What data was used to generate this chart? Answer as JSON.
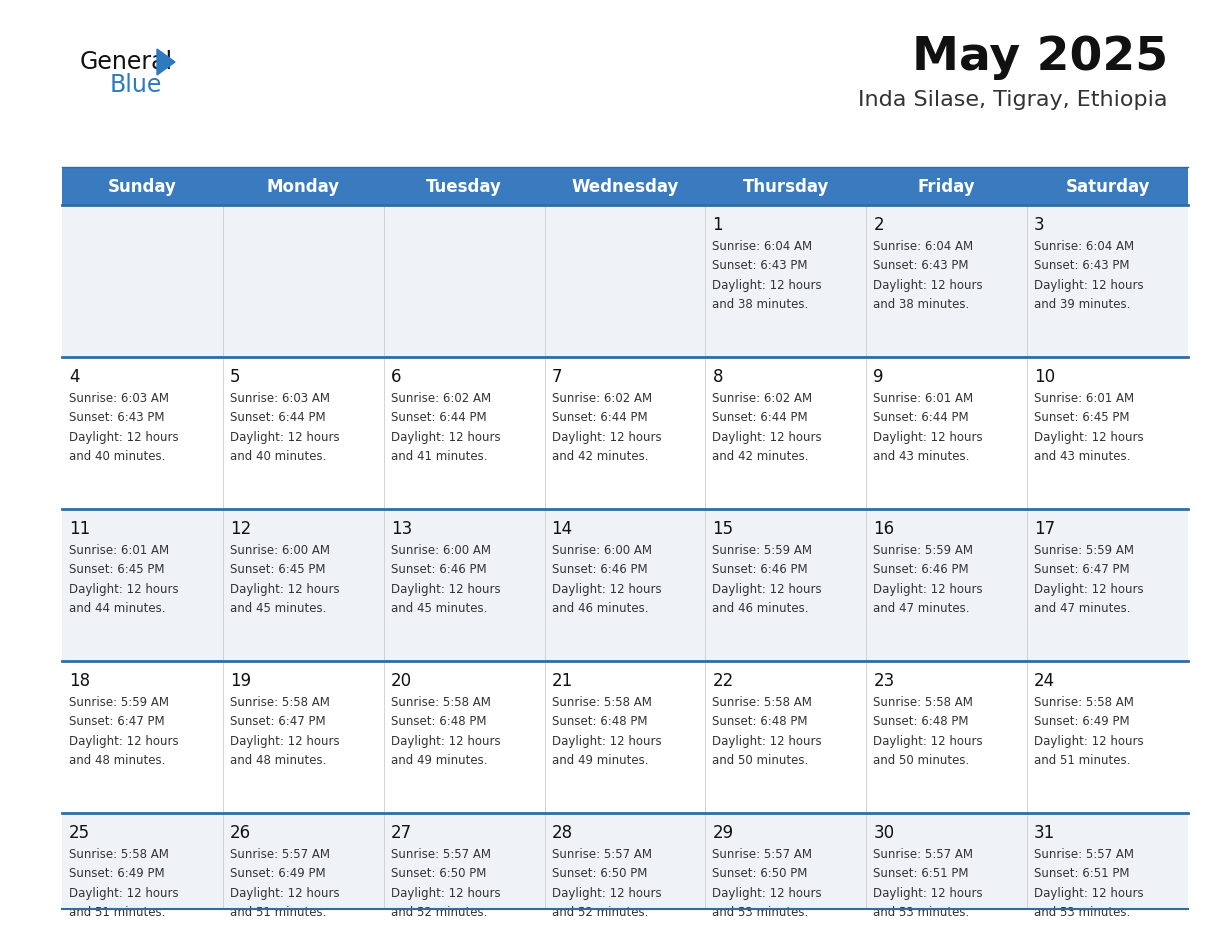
{
  "title": "May 2025",
  "subtitle": "Inda Silase, Tigray, Ethiopia",
  "days_of_week": [
    "Sunday",
    "Monday",
    "Tuesday",
    "Wednesday",
    "Thursday",
    "Friday",
    "Saturday"
  ],
  "header_bg": "#3a7bbf",
  "header_text": "#ffffff",
  "row_bg": [
    "#eff3f8",
    "#ffffff",
    "#eff3f8",
    "#ffffff",
    "#eff3f8"
  ],
  "divider_color": "#2e6da4",
  "day_number_color": "#111111",
  "cell_text_color": "#333333",
  "title_color": "#111111",
  "subtitle_color": "#333333",
  "logo_general_color": "#111111",
  "logo_blue_color": "#2e7abf",
  "logo_triangle_color": "#2e7abf",
  "calendar_data": [
    [
      null,
      null,
      null,
      null,
      {
        "day": 1,
        "sunrise": "6:04 AM",
        "sunset": "6:43 PM",
        "daylight": "12 hours and 38 minutes."
      },
      {
        "day": 2,
        "sunrise": "6:04 AM",
        "sunset": "6:43 PM",
        "daylight": "12 hours and 38 minutes."
      },
      {
        "day": 3,
        "sunrise": "6:04 AM",
        "sunset": "6:43 PM",
        "daylight": "12 hours and 39 minutes."
      }
    ],
    [
      {
        "day": 4,
        "sunrise": "6:03 AM",
        "sunset": "6:43 PM",
        "daylight": "12 hours and 40 minutes."
      },
      {
        "day": 5,
        "sunrise": "6:03 AM",
        "sunset": "6:44 PM",
        "daylight": "12 hours and 40 minutes."
      },
      {
        "day": 6,
        "sunrise": "6:02 AM",
        "sunset": "6:44 PM",
        "daylight": "12 hours and 41 minutes."
      },
      {
        "day": 7,
        "sunrise": "6:02 AM",
        "sunset": "6:44 PM",
        "daylight": "12 hours and 42 minutes."
      },
      {
        "day": 8,
        "sunrise": "6:02 AM",
        "sunset": "6:44 PM",
        "daylight": "12 hours and 42 minutes."
      },
      {
        "day": 9,
        "sunrise": "6:01 AM",
        "sunset": "6:44 PM",
        "daylight": "12 hours and 43 minutes."
      },
      {
        "day": 10,
        "sunrise": "6:01 AM",
        "sunset": "6:45 PM",
        "daylight": "12 hours and 43 minutes."
      }
    ],
    [
      {
        "day": 11,
        "sunrise": "6:01 AM",
        "sunset": "6:45 PM",
        "daylight": "12 hours and 44 minutes."
      },
      {
        "day": 12,
        "sunrise": "6:00 AM",
        "sunset": "6:45 PM",
        "daylight": "12 hours and 45 minutes."
      },
      {
        "day": 13,
        "sunrise": "6:00 AM",
        "sunset": "6:46 PM",
        "daylight": "12 hours and 45 minutes."
      },
      {
        "day": 14,
        "sunrise": "6:00 AM",
        "sunset": "6:46 PM",
        "daylight": "12 hours and 46 minutes."
      },
      {
        "day": 15,
        "sunrise": "5:59 AM",
        "sunset": "6:46 PM",
        "daylight": "12 hours and 46 minutes."
      },
      {
        "day": 16,
        "sunrise": "5:59 AM",
        "sunset": "6:46 PM",
        "daylight": "12 hours and 47 minutes."
      },
      {
        "day": 17,
        "sunrise": "5:59 AM",
        "sunset": "6:47 PM",
        "daylight": "12 hours and 47 minutes."
      }
    ],
    [
      {
        "day": 18,
        "sunrise": "5:59 AM",
        "sunset": "6:47 PM",
        "daylight": "12 hours and 48 minutes."
      },
      {
        "day": 19,
        "sunrise": "5:58 AM",
        "sunset": "6:47 PM",
        "daylight": "12 hours and 48 minutes."
      },
      {
        "day": 20,
        "sunrise": "5:58 AM",
        "sunset": "6:48 PM",
        "daylight": "12 hours and 49 minutes."
      },
      {
        "day": 21,
        "sunrise": "5:58 AM",
        "sunset": "6:48 PM",
        "daylight": "12 hours and 49 minutes."
      },
      {
        "day": 22,
        "sunrise": "5:58 AM",
        "sunset": "6:48 PM",
        "daylight": "12 hours and 50 minutes."
      },
      {
        "day": 23,
        "sunrise": "5:58 AM",
        "sunset": "6:48 PM",
        "daylight": "12 hours and 50 minutes."
      },
      {
        "day": 24,
        "sunrise": "5:58 AM",
        "sunset": "6:49 PM",
        "daylight": "12 hours and 51 minutes."
      }
    ],
    [
      {
        "day": 25,
        "sunrise": "5:58 AM",
        "sunset": "6:49 PM",
        "daylight": "12 hours and 51 minutes."
      },
      {
        "day": 26,
        "sunrise": "5:57 AM",
        "sunset": "6:49 PM",
        "daylight": "12 hours and 51 minutes."
      },
      {
        "day": 27,
        "sunrise": "5:57 AM",
        "sunset": "6:50 PM",
        "daylight": "12 hours and 52 minutes."
      },
      {
        "day": 28,
        "sunrise": "5:57 AM",
        "sunset": "6:50 PM",
        "daylight": "12 hours and 52 minutes."
      },
      {
        "day": 29,
        "sunrise": "5:57 AM",
        "sunset": "6:50 PM",
        "daylight": "12 hours and 53 minutes."
      },
      {
        "day": 30,
        "sunrise": "5:57 AM",
        "sunset": "6:51 PM",
        "daylight": "12 hours and 53 minutes."
      },
      {
        "day": 31,
        "sunrise": "5:57 AM",
        "sunset": "6:51 PM",
        "daylight": "12 hours and 53 minutes."
      }
    ]
  ]
}
